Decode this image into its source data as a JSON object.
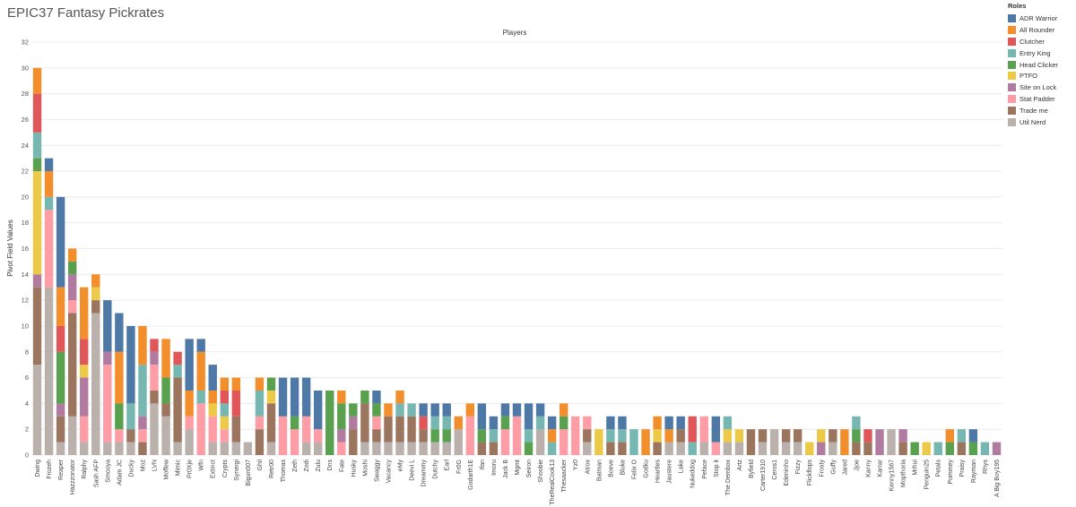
{
  "title": "EPIC37 Fantasy Pickrates",
  "header": "Players",
  "legend": {
    "title": "Roles",
    "items": [
      {
        "name": "ADR Warrior",
        "color": "#4e79a7"
      },
      {
        "name": "All Rounder",
        "color": "#f28e2b"
      },
      {
        "name": "Clutcher",
        "color": "#e15759"
      },
      {
        "name": "Entry King",
        "color": "#76b7b2"
      },
      {
        "name": "Head Clicker",
        "color": "#59a14f"
      },
      {
        "name": "PTFO",
        "color": "#edc948"
      },
      {
        "name": "Site on Lock",
        "color": "#b07aa1"
      },
      {
        "name": "Stat Padder",
        "color": "#ff9da7"
      },
      {
        "name": "Trade me",
        "color": "#9c755f"
      },
      {
        "name": "Util Nerd",
        "color": "#bab0ac"
      }
    ]
  },
  "chart_data": {
    "type": "bar",
    "stacked": true,
    "ylabel": "Pivot Field Values",
    "ylim": [
      0,
      32
    ],
    "yticks": [
      0,
      2,
      4,
      6,
      8,
      10,
      12,
      14,
      16,
      18,
      20,
      22,
      24,
      26,
      28,
      30,
      32
    ],
    "categories": [
      "Dwing",
      "Frozeh",
      "Reaper",
      "Hazzzonator",
      "Ralphy",
      "Sash AFP",
      "Smooya",
      "Adam JC",
      "Ducky",
      "Moz",
      "LVN",
      "Moffew",
      "Mimic",
      "Pr0Xje",
      "Wfn",
      "Extinct",
      "Crypts",
      "Synergi",
      "Bigun007",
      "Ghil",
      "Retr00",
      "Thomas",
      "Zeth",
      "Zodi",
      "Zulu",
      "Dns",
      "Fate",
      "Husky",
      "Moshi",
      "Swaggy",
      "Vacancy",
      "eMy",
      "Deevi L",
      "Dreammy",
      "Dutchy",
      "Earl",
      "Fr0G",
      "Godarth1E",
      "Ifan",
      "Imoru",
      "Jack B",
      "Mgmt",
      "Seiron",
      "Shoobie",
      "TheRealCook13",
      "Thesaacker",
      "Yz0",
      "Atrox",
      "Batman",
      "Boeve",
      "Bluke",
      "Felix O",
      "Godku",
      "Heartles",
      "Jaustere",
      "Lake",
      "Nukeddog",
      "Peface",
      "Stop it",
      "The Dembox",
      "Artz",
      "Byfield",
      "Carter1910",
      "Ceros1",
      "Edeninho",
      "Fizzy",
      "Flickflops",
      "Frosty",
      "Guffy",
      "Jared",
      "Jjoe",
      "Kanny",
      "Karrar",
      "Kenny1567",
      "Mopthoria",
      "Mrhui",
      "Penguin25",
      "Petals",
      "Pommey",
      "Praisy",
      "Rayman",
      "Rhys",
      "A Big Boy195"
    ],
    "series": [
      {
        "name": "ADR Warrior",
        "values": [
          0,
          1,
          7,
          0,
          0,
          0,
          4,
          3,
          6,
          0,
          0,
          0,
          0,
          4,
          1,
          2,
          0,
          0,
          0,
          0,
          0,
          3,
          3,
          3,
          3,
          0,
          0,
          0,
          0,
          1,
          0,
          0,
          0,
          1,
          1,
          1,
          0,
          0,
          2,
          1,
          1,
          1,
          2,
          1,
          1,
          0,
          0,
          0,
          0,
          1,
          1,
          0,
          0,
          0,
          1,
          1,
          0,
          0,
          2,
          0,
          0,
          0,
          0,
          0,
          0,
          0,
          0,
          0,
          0,
          0,
          0,
          0,
          0,
          0,
          0,
          0,
          0,
          0,
          0,
          0,
          1,
          0,
          0
        ]
      },
      {
        "name": "All Rounder",
        "values": [
          2,
          2,
          3,
          1,
          4,
          1,
          0,
          4,
          0,
          3,
          0,
          3,
          0,
          2,
          3,
          1,
          1,
          1,
          0,
          1,
          0,
          0,
          0,
          0,
          0,
          0,
          1,
          0,
          0,
          0,
          1,
          1,
          0,
          0,
          0,
          0,
          1,
          1,
          0,
          0,
          0,
          0,
          0,
          0,
          1,
          1,
          0,
          0,
          0,
          0,
          0,
          0,
          2,
          1,
          1,
          0,
          0,
          0,
          0,
          0,
          0,
          0,
          0,
          0,
          0,
          0,
          0,
          0,
          0,
          2,
          0,
          0,
          0,
          0,
          0,
          0,
          0,
          0,
          1,
          0,
          0,
          0,
          0
        ]
      },
      {
        "name": "Clutcher",
        "values": [
          3,
          0,
          2,
          0,
          2,
          0,
          0,
          0,
          0,
          0,
          1,
          0,
          1,
          0,
          0,
          0,
          1,
          2,
          0,
          0,
          0,
          0,
          0,
          0,
          0,
          0,
          0,
          0,
          0,
          0,
          0,
          0,
          0,
          1,
          0,
          0,
          0,
          0,
          0,
          0,
          0,
          0,
          0,
          0,
          0,
          0,
          0,
          0,
          0,
          0,
          0,
          0,
          0,
          0,
          0,
          0,
          2,
          0,
          0,
          0,
          0,
          0,
          0,
          0,
          0,
          0,
          0,
          0,
          0,
          0,
          0,
          1,
          0,
          0,
          0,
          0,
          0,
          0,
          0,
          0,
          0,
          0,
          0
        ]
      },
      {
        "name": "Entry King",
        "values": [
          2,
          1,
          0,
          0,
          0,
          0,
          0,
          0,
          2,
          4,
          0,
          0,
          1,
          0,
          1,
          0,
          1,
          0,
          0,
          2,
          0,
          0,
          0,
          0,
          0,
          0,
          0,
          0,
          0,
          0,
          0,
          1,
          1,
          0,
          1,
          1,
          0,
          0,
          0,
          1,
          0,
          0,
          1,
          1,
          1,
          0,
          0,
          0,
          0,
          1,
          1,
          2,
          0,
          0,
          0,
          0,
          1,
          0,
          0,
          1,
          0,
          0,
          0,
          0,
          0,
          0,
          0,
          0,
          0,
          0,
          1,
          0,
          0,
          0,
          0,
          0,
          0,
          1,
          0,
          1,
          0,
          1,
          0
        ]
      },
      {
        "name": "Head Clicker",
        "values": [
          1,
          0,
          4,
          1,
          0,
          0,
          0,
          2,
          0,
          0,
          0,
          2,
          0,
          0,
          0,
          0,
          0,
          0,
          0,
          0,
          1,
          0,
          1,
          0,
          0,
          5,
          2,
          1,
          1,
          1,
          0,
          0,
          0,
          0,
          1,
          1,
          0,
          0,
          1,
          0,
          1,
          0,
          1,
          0,
          0,
          1,
          0,
          0,
          0,
          0,
          0,
          0,
          0,
          0,
          0,
          0,
          0,
          0,
          0,
          0,
          0,
          0,
          0,
          0,
          0,
          0,
          0,
          0,
          0,
          0,
          1,
          0,
          0,
          0,
          0,
          1,
          0,
          0,
          1,
          0,
          1,
          0,
          0
        ]
      },
      {
        "name": "PTFO",
        "values": [
          8,
          0,
          0,
          0,
          1,
          1,
          0,
          0,
          0,
          0,
          0,
          0,
          0,
          0,
          0,
          1,
          1,
          0,
          0,
          0,
          1,
          0,
          0,
          0,
          0,
          0,
          0,
          0,
          0,
          0,
          0,
          0,
          0,
          0,
          0,
          0,
          0,
          0,
          0,
          0,
          0,
          0,
          0,
          0,
          0,
          0,
          0,
          0,
          2,
          0,
          0,
          0,
          0,
          1,
          0,
          0,
          0,
          0,
          0,
          1,
          1,
          0,
          0,
          0,
          0,
          0,
          1,
          1,
          0,
          0,
          0,
          0,
          0,
          0,
          0,
          0,
          1,
          0,
          0,
          0,
          0,
          0,
          0
        ]
      },
      {
        "name": "Site on Lock",
        "values": [
          1,
          0,
          1,
          2,
          3,
          0,
          1,
          0,
          0,
          1,
          1,
          0,
          0,
          0,
          0,
          0,
          0,
          0,
          0,
          0,
          0,
          0,
          0,
          0,
          0,
          0,
          1,
          1,
          0,
          0,
          0,
          0,
          0,
          0,
          0,
          0,
          0,
          0,
          0,
          0,
          0,
          0,
          0,
          0,
          0,
          0,
          0,
          0,
          0,
          0,
          0,
          0,
          0,
          0,
          0,
          0,
          0,
          0,
          0,
          0,
          0,
          0,
          0,
          0,
          0,
          0,
          0,
          1,
          0,
          0,
          0,
          0,
          2,
          0,
          1,
          0,
          0,
          0,
          0,
          0,
          0,
          0,
          1
        ]
      },
      {
        "name": "Stat Padder",
        "values": [
          0,
          6,
          0,
          1,
          2,
          0,
          6,
          1,
          0,
          1,
          2,
          0,
          0,
          1,
          4,
          2,
          1,
          0,
          0,
          1,
          0,
          3,
          2,
          2,
          1,
          0,
          1,
          0,
          0,
          1,
          0,
          0,
          0,
          0,
          0,
          0,
          0,
          3,
          0,
          0,
          2,
          3,
          0,
          0,
          0,
          2,
          3,
          1,
          0,
          0,
          0,
          0,
          0,
          0,
          0,
          0,
          0,
          2,
          1,
          0,
          0,
          0,
          0,
          0,
          0,
          0,
          0,
          0,
          0,
          0,
          0,
          0,
          0,
          0,
          0,
          0,
          0,
          0,
          0,
          0,
          0,
          0,
          0
        ]
      },
      {
        "name": "Trade me",
        "values": [
          6,
          0,
          2,
          8,
          0,
          1,
          0,
          0,
          1,
          1,
          1,
          1,
          5,
          0,
          0,
          0,
          0,
          2,
          0,
          2,
          3,
          0,
          0,
          0,
          0,
          0,
          0,
          2,
          3,
          1,
          2,
          2,
          2,
          1,
          0,
          0,
          0,
          0,
          1,
          1,
          0,
          0,
          0,
          0,
          0,
          0,
          0,
          1,
          0,
          1,
          1,
          0,
          0,
          1,
          0,
          1,
          0,
          0,
          0,
          0,
          0,
          2,
          1,
          0,
          1,
          1,
          0,
          0,
          1,
          0,
          1,
          1,
          0,
          0,
          1,
          0,
          0,
          0,
          0,
          1,
          0,
          0,
          0
        ]
      },
      {
        "name": "Util Nerd",
        "values": [
          7,
          13,
          1,
          3,
          1,
          11,
          1,
          1,
          1,
          0,
          4,
          3,
          1,
          2,
          0,
          1,
          1,
          1,
          1,
          0,
          1,
          0,
          0,
          1,
          1,
          0,
          0,
          0,
          1,
          1,
          1,
          1,
          1,
          1,
          1,
          1,
          2,
          0,
          0,
          0,
          0,
          0,
          0,
          2,
          0,
          0,
          0,
          1,
          0,
          0,
          0,
          0,
          0,
          0,
          1,
          1,
          0,
          1,
          0,
          1,
          1,
          0,
          1,
          2,
          1,
          1,
          0,
          0,
          1,
          0,
          0,
          0,
          0,
          2,
          0,
          0,
          0,
          0,
          0,
          0,
          0,
          0,
          0
        ]
      }
    ]
  }
}
